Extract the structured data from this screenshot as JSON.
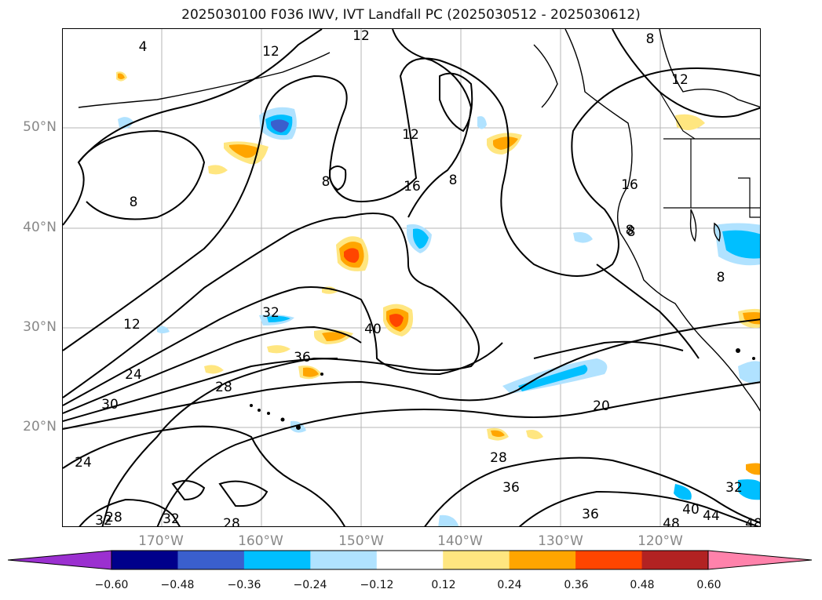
{
  "title": "2025030100 F036 IWV, IVT Landfall PC (2025030512 - 2025030612)",
  "lat_labels": [
    "50°N",
    "40°N",
    "30°N",
    "20°N"
  ],
  "lon_labels": [
    "170°W",
    "160°W",
    "150°W",
    "140°W",
    "130°W",
    "120°W"
  ],
  "contour_labels": [
    "4",
    "12",
    "12",
    "12",
    "8",
    "8",
    "12",
    "16",
    "8",
    "16",
    "8",
    "8",
    "32",
    "12",
    "40",
    "36",
    "24",
    "28",
    "30",
    "20",
    "28",
    "24",
    "36",
    "36",
    "32",
    "40",
    "44",
    "48",
    "48",
    "32",
    "28",
    "32",
    "28",
    "8",
    "8"
  ],
  "colorbar": {
    "ticks": [
      "−0.60",
      "−0.48",
      "−0.36",
      "−0.24",
      "−0.12",
      "0.12",
      "0.24",
      "0.36",
      "0.48",
      "0.60"
    ],
    "colors": [
      "#9b30d0",
      "#00008b",
      "#3a5fcd",
      "#00bfff",
      "#b0e2ff",
      "#ffffff",
      "#ffe680",
      "#ffa500",
      "#ff4500",
      "#b22222",
      "#ff82ab"
    ]
  }
}
